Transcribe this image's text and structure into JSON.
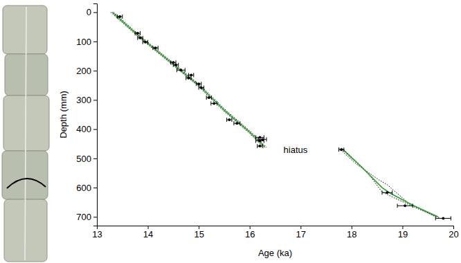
{
  "chart_data": {
    "type": "scatter",
    "x_label": "Age (ka)",
    "y_label": "Depth (mm)",
    "xlim": [
      13,
      20
    ],
    "xticks": [
      13,
      14,
      15,
      16,
      17,
      18,
      19,
      20
    ],
    "ylim": [
      730,
      -30
    ],
    "yticks": [
      0,
      100,
      200,
      300,
      400,
      500,
      600,
      700
    ],
    "grid": false,
    "annotations": [
      {
        "text": "hiatus",
        "x": 16.9,
        "y": 470
      }
    ],
    "series": [
      {
        "type": "line",
        "color": "#000000",
        "line_style": "dotted",
        "x": [
          13.27,
          13.77,
          14.47,
          14.97,
          15.47,
          15.97,
          16.27,
          null,
          17.75,
          18.1,
          18.55,
          18.7,
          19.1,
          19.65
        ],
        "values": [
          0,
          78,
          178,
          250,
          335,
          410,
          462,
          null,
          465,
          520,
          575,
          590,
          650,
          700
        ]
      },
      {
        "type": "line",
        "color": "#000000",
        "line_style": "dotted",
        "x": [
          13.33,
          13.83,
          14.53,
          15.03,
          15.53,
          16.03,
          16.33,
          null,
          17.85,
          18.3,
          18.6,
          18.9,
          19.3,
          19.75
        ],
        "values": [
          0,
          78,
          178,
          250,
          335,
          410,
          462,
          null,
          470,
          545,
          615,
          640,
          672,
          705
        ]
      },
      {
        "type": "line",
        "color": "#2ca02c",
        "line_style": "solid",
        "x": [
          13.3,
          13.8,
          14.5,
          15.0,
          15.5,
          16.0,
          16.3,
          null,
          17.8,
          18.2,
          18.6,
          18.75,
          19.2,
          19.7
        ],
        "values": [
          0,
          78,
          178,
          250,
          335,
          410,
          462,
          null,
          465,
          530,
          600,
          618,
          660,
          700
        ]
      },
      {
        "type": "scatter",
        "color": "#000000",
        "marker": "circle",
        "x": [
          13.45,
          13.8,
          13.85,
          13.95,
          14.15,
          14.5,
          14.55,
          14.65,
          14.85,
          14.8,
          15.0,
          15.05,
          15.2,
          15.3,
          15.6,
          15.75,
          16.2,
          16.25,
          16.2,
          16.2,
          17.8,
          18.7,
          19.05,
          19.8
        ],
        "values": [
          15,
          72,
          88,
          102,
          122,
          172,
          180,
          198,
          215,
          225,
          245,
          258,
          292,
          312,
          368,
          380,
          428,
          435,
          440,
          458,
          470,
          617,
          662,
          705
        ],
        "x_error": [
          0.05,
          0.05,
          0.05,
          0.05,
          0.05,
          0.05,
          0.05,
          0.08,
          0.05,
          0.05,
          0.05,
          0.05,
          0.05,
          0.06,
          0.05,
          0.06,
          0.08,
          0.08,
          0.08,
          0.05,
          0.05,
          0.1,
          0.15,
          0.15
        ]
      }
    ]
  }
}
